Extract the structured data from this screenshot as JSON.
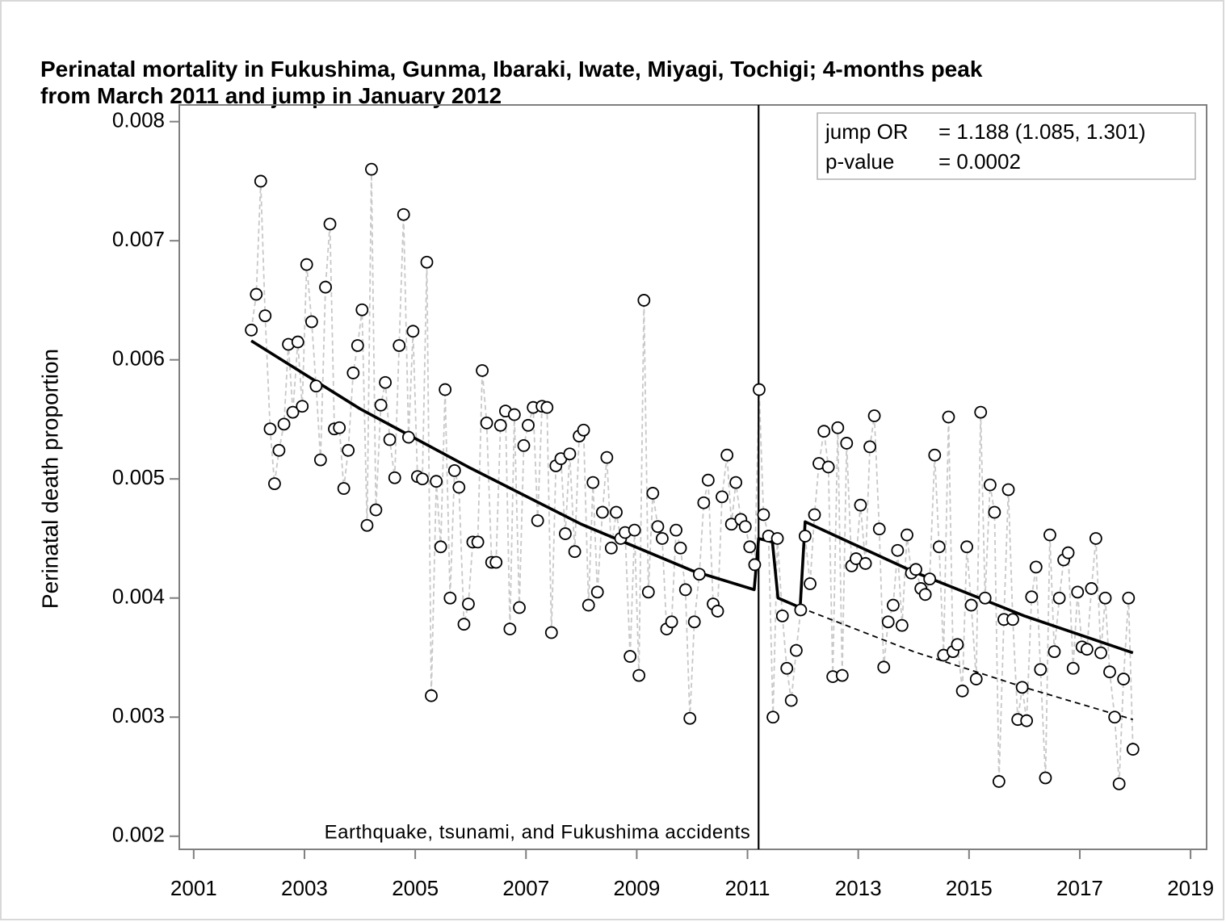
{
  "chart_data": {
    "type": "scatter",
    "title": [
      "Perinatal mortality in Fukushima, Gunma, Ibaraki, Iwate, Miyagi, Tochigi; 4-months peak",
      "from March 2011 and jump in January 2012"
    ],
    "ylabel": "Perinatal death proportion",
    "xlim": [
      2000.74,
      2019.29
    ],
    "ylim": [
      0.00189,
      0.00814
    ],
    "xticks": [
      2001,
      2003,
      2005,
      2007,
      2009,
      2011,
      2013,
      2015,
      2017,
      2019
    ],
    "yticks": [
      0.002,
      0.003,
      0.004,
      0.005,
      0.006,
      0.007,
      0.008
    ],
    "event": {
      "x": 2011.2,
      "label": "Earthquake, tsunami, and Fukushima accidents"
    },
    "annotation": [
      [
        "jump OR",
        "= 1.188 (1.085, 1.301)"
      ],
      [
        "p-value",
        "= 0.0002"
      ]
    ],
    "series": [
      {
        "style": "points",
        "color": "#000000",
        "line_color": "#c8c8c8",
        "x": [
          2002.04,
          2002.13,
          2002.21,
          2002.29,
          2002.38,
          2002.46,
          2002.54,
          2002.63,
          2002.71,
          2002.79,
          2002.88,
          2002.96,
          2003.04,
          2003.13,
          2003.21,
          2003.29,
          2003.38,
          2003.46,
          2003.54,
          2003.63,
          2003.71,
          2003.79,
          2003.88,
          2003.96,
          2004.04,
          2004.13,
          2004.21,
          2004.29,
          2004.38,
          2004.46,
          2004.54,
          2004.63,
          2004.71,
          2004.79,
          2004.88,
          2004.96,
          2005.04,
          2005.13,
          2005.21,
          2005.29,
          2005.38,
          2005.46,
          2005.54,
          2005.63,
          2005.71,
          2005.79,
          2005.88,
          2005.96,
          2006.04,
          2006.13,
          2006.21,
          2006.29,
          2006.38,
          2006.46,
          2006.54,
          2006.63,
          2006.71,
          2006.79,
          2006.88,
          2006.96,
          2007.04,
          2007.13,
          2007.21,
          2007.29,
          2007.38,
          2007.46,
          2007.54,
          2007.63,
          2007.71,
          2007.79,
          2007.88,
          2007.96,
          2008.04,
          2008.13,
          2008.21,
          2008.29,
          2008.38,
          2008.46,
          2008.54,
          2008.63,
          2008.71,
          2008.79,
          2008.88,
          2008.96,
          2009.04,
          2009.13,
          2009.21,
          2009.29,
          2009.38,
          2009.46,
          2009.54,
          2009.63,
          2009.71,
          2009.79,
          2009.88,
          2009.96,
          2010.04,
          2010.13,
          2010.21,
          2010.29,
          2010.38,
          2010.46,
          2010.54,
          2010.63,
          2010.71,
          2010.79,
          2010.88,
          2010.96,
          2011.04,
          2011.13,
          2011.21,
          2011.29,
          2011.38,
          2011.46,
          2011.54,
          2011.63,
          2011.71,
          2011.79,
          2011.88,
          2011.96,
          2012.04,
          2012.13,
          2012.21,
          2012.29,
          2012.38,
          2012.46,
          2012.54,
          2012.63,
          2012.71,
          2012.79,
          2012.88,
          2012.96,
          2013.04,
          2013.13,
          2013.21,
          2013.29,
          2013.38,
          2013.46,
          2013.54,
          2013.63,
          2013.71,
          2013.79,
          2013.88,
          2013.96,
          2014.04,
          2014.13,
          2014.21,
          2014.29,
          2014.38,
          2014.46,
          2014.54,
          2014.63,
          2014.71,
          2014.79,
          2014.88,
          2014.96,
          2015.04,
          2015.13,
          2015.21,
          2015.29,
          2015.38,
          2015.46,
          2015.54,
          2015.63,
          2015.71,
          2015.79,
          2015.88,
          2015.96,
          2016.04,
          2016.13,
          2016.21,
          2016.29,
          2016.38,
          2016.46,
          2016.54,
          2016.63,
          2016.71,
          2016.79,
          2016.88,
          2016.96,
          2017.04,
          2017.13,
          2017.21,
          2017.29,
          2017.38,
          2017.46,
          2017.54,
          2017.63,
          2017.71,
          2017.79,
          2017.88,
          2017.96
        ],
        "values": [
          0.00625,
          0.00655,
          0.0075,
          0.00637,
          0.00542,
          0.00496,
          0.00524,
          0.00546,
          0.00613,
          0.00556,
          0.00615,
          0.00561,
          0.0068,
          0.00632,
          0.00578,
          0.00516,
          0.00661,
          0.00714,
          0.00542,
          0.00543,
          0.00492,
          0.00524,
          0.00589,
          0.00612,
          0.00642,
          0.00461,
          0.0076,
          0.00474,
          0.00562,
          0.00581,
          0.00533,
          0.00501,
          0.00612,
          0.00722,
          0.00535,
          0.00624,
          0.00502,
          0.005,
          0.00682,
          0.00318,
          0.00498,
          0.00443,
          0.00575,
          0.004,
          0.00507,
          0.00493,
          0.00378,
          0.00395,
          0.00447,
          0.00447,
          0.00591,
          0.00547,
          0.0043,
          0.0043,
          0.00545,
          0.00557,
          0.00374,
          0.00554,
          0.00392,
          0.00528,
          0.00545,
          0.0056,
          0.00465,
          0.00561,
          0.0056,
          0.00371,
          0.00511,
          0.00517,
          0.00454,
          0.00521,
          0.00439,
          0.00536,
          0.00541,
          0.00394,
          0.00497,
          0.00405,
          0.00472,
          0.00518,
          0.00442,
          0.00472,
          0.0045,
          0.00455,
          0.00351,
          0.00457,
          0.00335,
          0.0065,
          0.00405,
          0.00488,
          0.0046,
          0.0045,
          0.00374,
          0.0038,
          0.00457,
          0.00442,
          0.00407,
          0.00299,
          0.0038,
          0.0042,
          0.0048,
          0.00499,
          0.00395,
          0.00389,
          0.00485,
          0.0052,
          0.00462,
          0.00497,
          0.00466,
          0.0046,
          0.00443,
          0.00428,
          0.00575,
          0.0047,
          0.00452,
          0.003,
          0.0045,
          0.00385,
          0.00341,
          0.00314,
          0.00356,
          0.0039,
          0.00452,
          0.00412,
          0.0047,
          0.00513,
          0.0054,
          0.0051,
          0.00334,
          0.00543,
          0.00335,
          0.0053,
          0.00427,
          0.00433,
          0.00478,
          0.00429,
          0.00527,
          0.00553,
          0.00458,
          0.00342,
          0.0038,
          0.00394,
          0.0044,
          0.00377,
          0.00453,
          0.00421,
          0.00424,
          0.00408,
          0.00403,
          0.00416,
          0.0052,
          0.00443,
          0.00352,
          0.00552,
          0.00355,
          0.00361,
          0.00322,
          0.00443,
          0.00394,
          0.00332,
          0.00556,
          0.004,
          0.00495,
          0.00472,
          0.00246,
          0.00382,
          0.00491,
          0.00382,
          0.00298,
          0.00325,
          0.00297,
          0.00401,
          0.00426,
          0.0034,
          0.00249,
          0.00453,
          0.00355,
          0.004,
          0.00432,
          0.00438,
          0.00341,
          0.00405,
          0.00359,
          0.00357,
          0.00408,
          0.0045,
          0.00354,
          0.004,
          0.00338,
          0.003,
          0.00244,
          0.00332,
          0.004,
          0.00273
        ]
      },
      {
        "style": "solid",
        "color": "#000000",
        "x": [
          2002.04,
          2004,
          2006,
          2008,
          2010,
          2011.12,
          2011.2,
          2011.45,
          2011.55,
          2011.95,
          2012.04,
          2014,
          2016,
          2017.96
        ],
        "values": [
          0.00616,
          0.00559,
          0.00509,
          0.00462,
          0.00423,
          0.00407,
          0.0045,
          0.00447,
          0.004,
          0.00392,
          0.00464,
          0.00422,
          0.00385,
          0.00354
        ]
      },
      {
        "style": "dashed",
        "color": "#000000",
        "x": [
          2011.95,
          2014,
          2016,
          2017.96
        ],
        "values": [
          0.00392,
          0.00355,
          0.00325,
          0.00298
        ]
      }
    ]
  }
}
